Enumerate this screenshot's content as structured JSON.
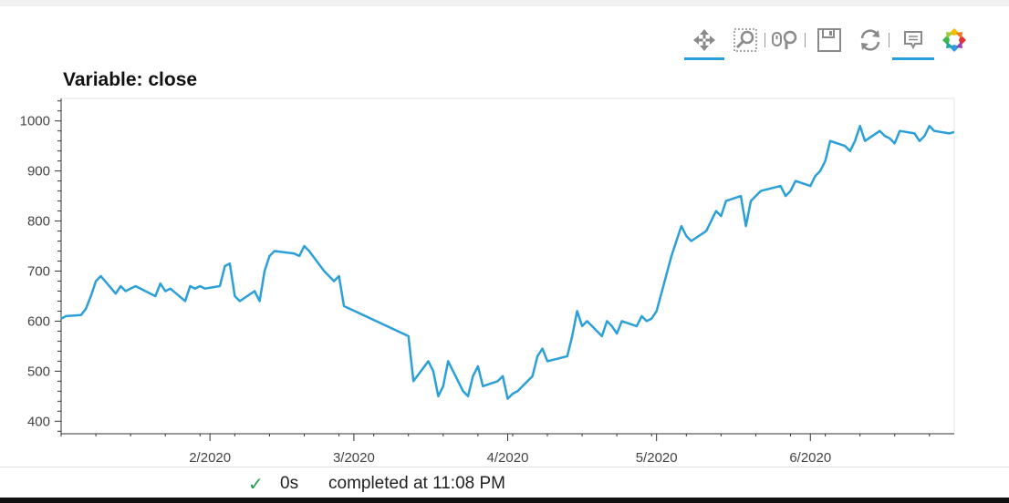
{
  "title": "Variable: close",
  "toolbar": {
    "tools": [
      "pan",
      "box-zoom",
      "wheel-zoom",
      "save",
      "reset",
      "hover"
    ],
    "active": [
      "pan",
      "hover"
    ],
    "accent": "#26a0da"
  },
  "chart_data": {
    "type": "line",
    "title": "Variable: close",
    "xlabel": "",
    "ylabel": "",
    "line_color": "#2b9fd8",
    "grid": false,
    "x_range": [
      "2020-01-02",
      "2020-06-30"
    ],
    "ylim": [
      375,
      1045
    ],
    "y_ticks": [
      400,
      500,
      600,
      700,
      800,
      900,
      1000
    ],
    "x_ticks": [
      {
        "date": "2020-02-01",
        "label": "2/2020"
      },
      {
        "date": "2020-03-01",
        "label": "3/2020"
      },
      {
        "date": "2020-04-01",
        "label": "4/2020"
      },
      {
        "date": "2020-05-01",
        "label": "5/2020"
      },
      {
        "date": "2020-06-01",
        "label": "6/2020"
      }
    ],
    "series": [
      {
        "x": [
          "2020-01-02",
          "2020-01-03",
          "2020-01-06",
          "2020-01-07",
          "2020-01-08",
          "2020-01-09",
          "2020-01-10",
          "2020-01-13",
          "2020-01-14",
          "2020-01-15",
          "2020-01-16",
          "2020-01-17",
          "2020-01-21",
          "2020-01-22",
          "2020-01-23",
          "2020-01-24",
          "2020-01-27",
          "2020-01-28",
          "2020-01-29",
          "2020-01-30",
          "2020-01-31",
          "2020-02-03",
          "2020-02-04",
          "2020-02-05",
          "2020-02-06",
          "2020-02-07",
          "2020-02-10",
          "2020-02-11",
          "2020-02-12",
          "2020-02-13",
          "2020-02-14",
          "2020-02-18",
          "2020-02-19",
          "2020-02-20",
          "2020-02-21",
          "2020-02-24",
          "2020-02-25",
          "2020-02-26",
          "2020-02-27",
          "2020-02-28",
          "2020-03-12",
          "2020-03-13",
          "2020-03-16",
          "2020-03-17",
          "2020-03-18",
          "2020-03-19",
          "2020-03-20",
          "2020-03-23",
          "2020-03-24",
          "2020-03-25",
          "2020-03-26",
          "2020-03-27",
          "2020-03-30",
          "2020-03-31",
          "2020-04-01",
          "2020-04-02",
          "2020-04-03",
          "2020-04-06",
          "2020-04-07",
          "2020-04-08",
          "2020-04-09",
          "2020-04-13",
          "2020-04-14",
          "2020-04-15",
          "2020-04-16",
          "2020-04-17",
          "2020-04-20",
          "2020-04-21",
          "2020-04-22",
          "2020-04-23",
          "2020-04-24",
          "2020-04-27",
          "2020-04-28",
          "2020-04-29",
          "2020-04-30",
          "2020-05-01",
          "2020-05-04",
          "2020-05-05",
          "2020-05-06",
          "2020-05-07",
          "2020-05-08",
          "2020-05-11",
          "2020-05-12",
          "2020-05-13",
          "2020-05-14",
          "2020-05-15",
          "2020-05-18",
          "2020-05-19",
          "2020-05-20",
          "2020-05-21",
          "2020-05-22",
          "2020-05-26",
          "2020-05-27",
          "2020-05-28",
          "2020-05-29",
          "2020-06-01",
          "2020-06-02",
          "2020-06-03",
          "2020-06-04",
          "2020-06-05",
          "2020-06-08",
          "2020-06-09",
          "2020-06-10",
          "2020-06-11",
          "2020-06-12",
          "2020-06-15",
          "2020-06-16",
          "2020-06-17",
          "2020-06-18",
          "2020-06-19",
          "2020-06-22",
          "2020-06-23",
          "2020-06-24",
          "2020-06-25",
          "2020-06-26",
          "2020-06-29",
          "2020-06-30"
        ],
        "y": [
          605,
          610,
          612,
          625,
          650,
          680,
          690,
          655,
          670,
          660,
          665,
          670,
          650,
          675,
          660,
          665,
          640,
          670,
          665,
          670,
          665,
          670,
          710,
          715,
          650,
          640,
          660,
          640,
          700,
          730,
          740,
          735,
          730,
          750,
          740,
          700,
          690,
          680,
          690,
          630,
          570,
          480,
          520,
          500,
          450,
          470,
          520,
          460,
          450,
          490,
          510,
          470,
          480,
          490,
          445,
          455,
          460,
          490,
          530,
          545,
          520,
          530,
          570,
          620,
          590,
          600,
          570,
          600,
          590,
          575,
          600,
          590,
          610,
          600,
          605,
          620,
          730,
          760,
          790,
          770,
          760,
          780,
          800,
          820,
          810,
          840,
          850,
          790,
          840,
          850,
          860,
          870,
          850,
          860,
          880,
          870,
          890,
          900,
          920,
          960,
          950,
          940,
          960,
          990,
          960,
          980,
          970,
          965,
          955,
          980,
          975,
          960,
          970,
          990,
          980,
          975,
          978
        ]
      }
    ]
  },
  "status": {
    "check_icon": "check-icon",
    "time": "0s",
    "message": "completed at 11:08 PM"
  }
}
